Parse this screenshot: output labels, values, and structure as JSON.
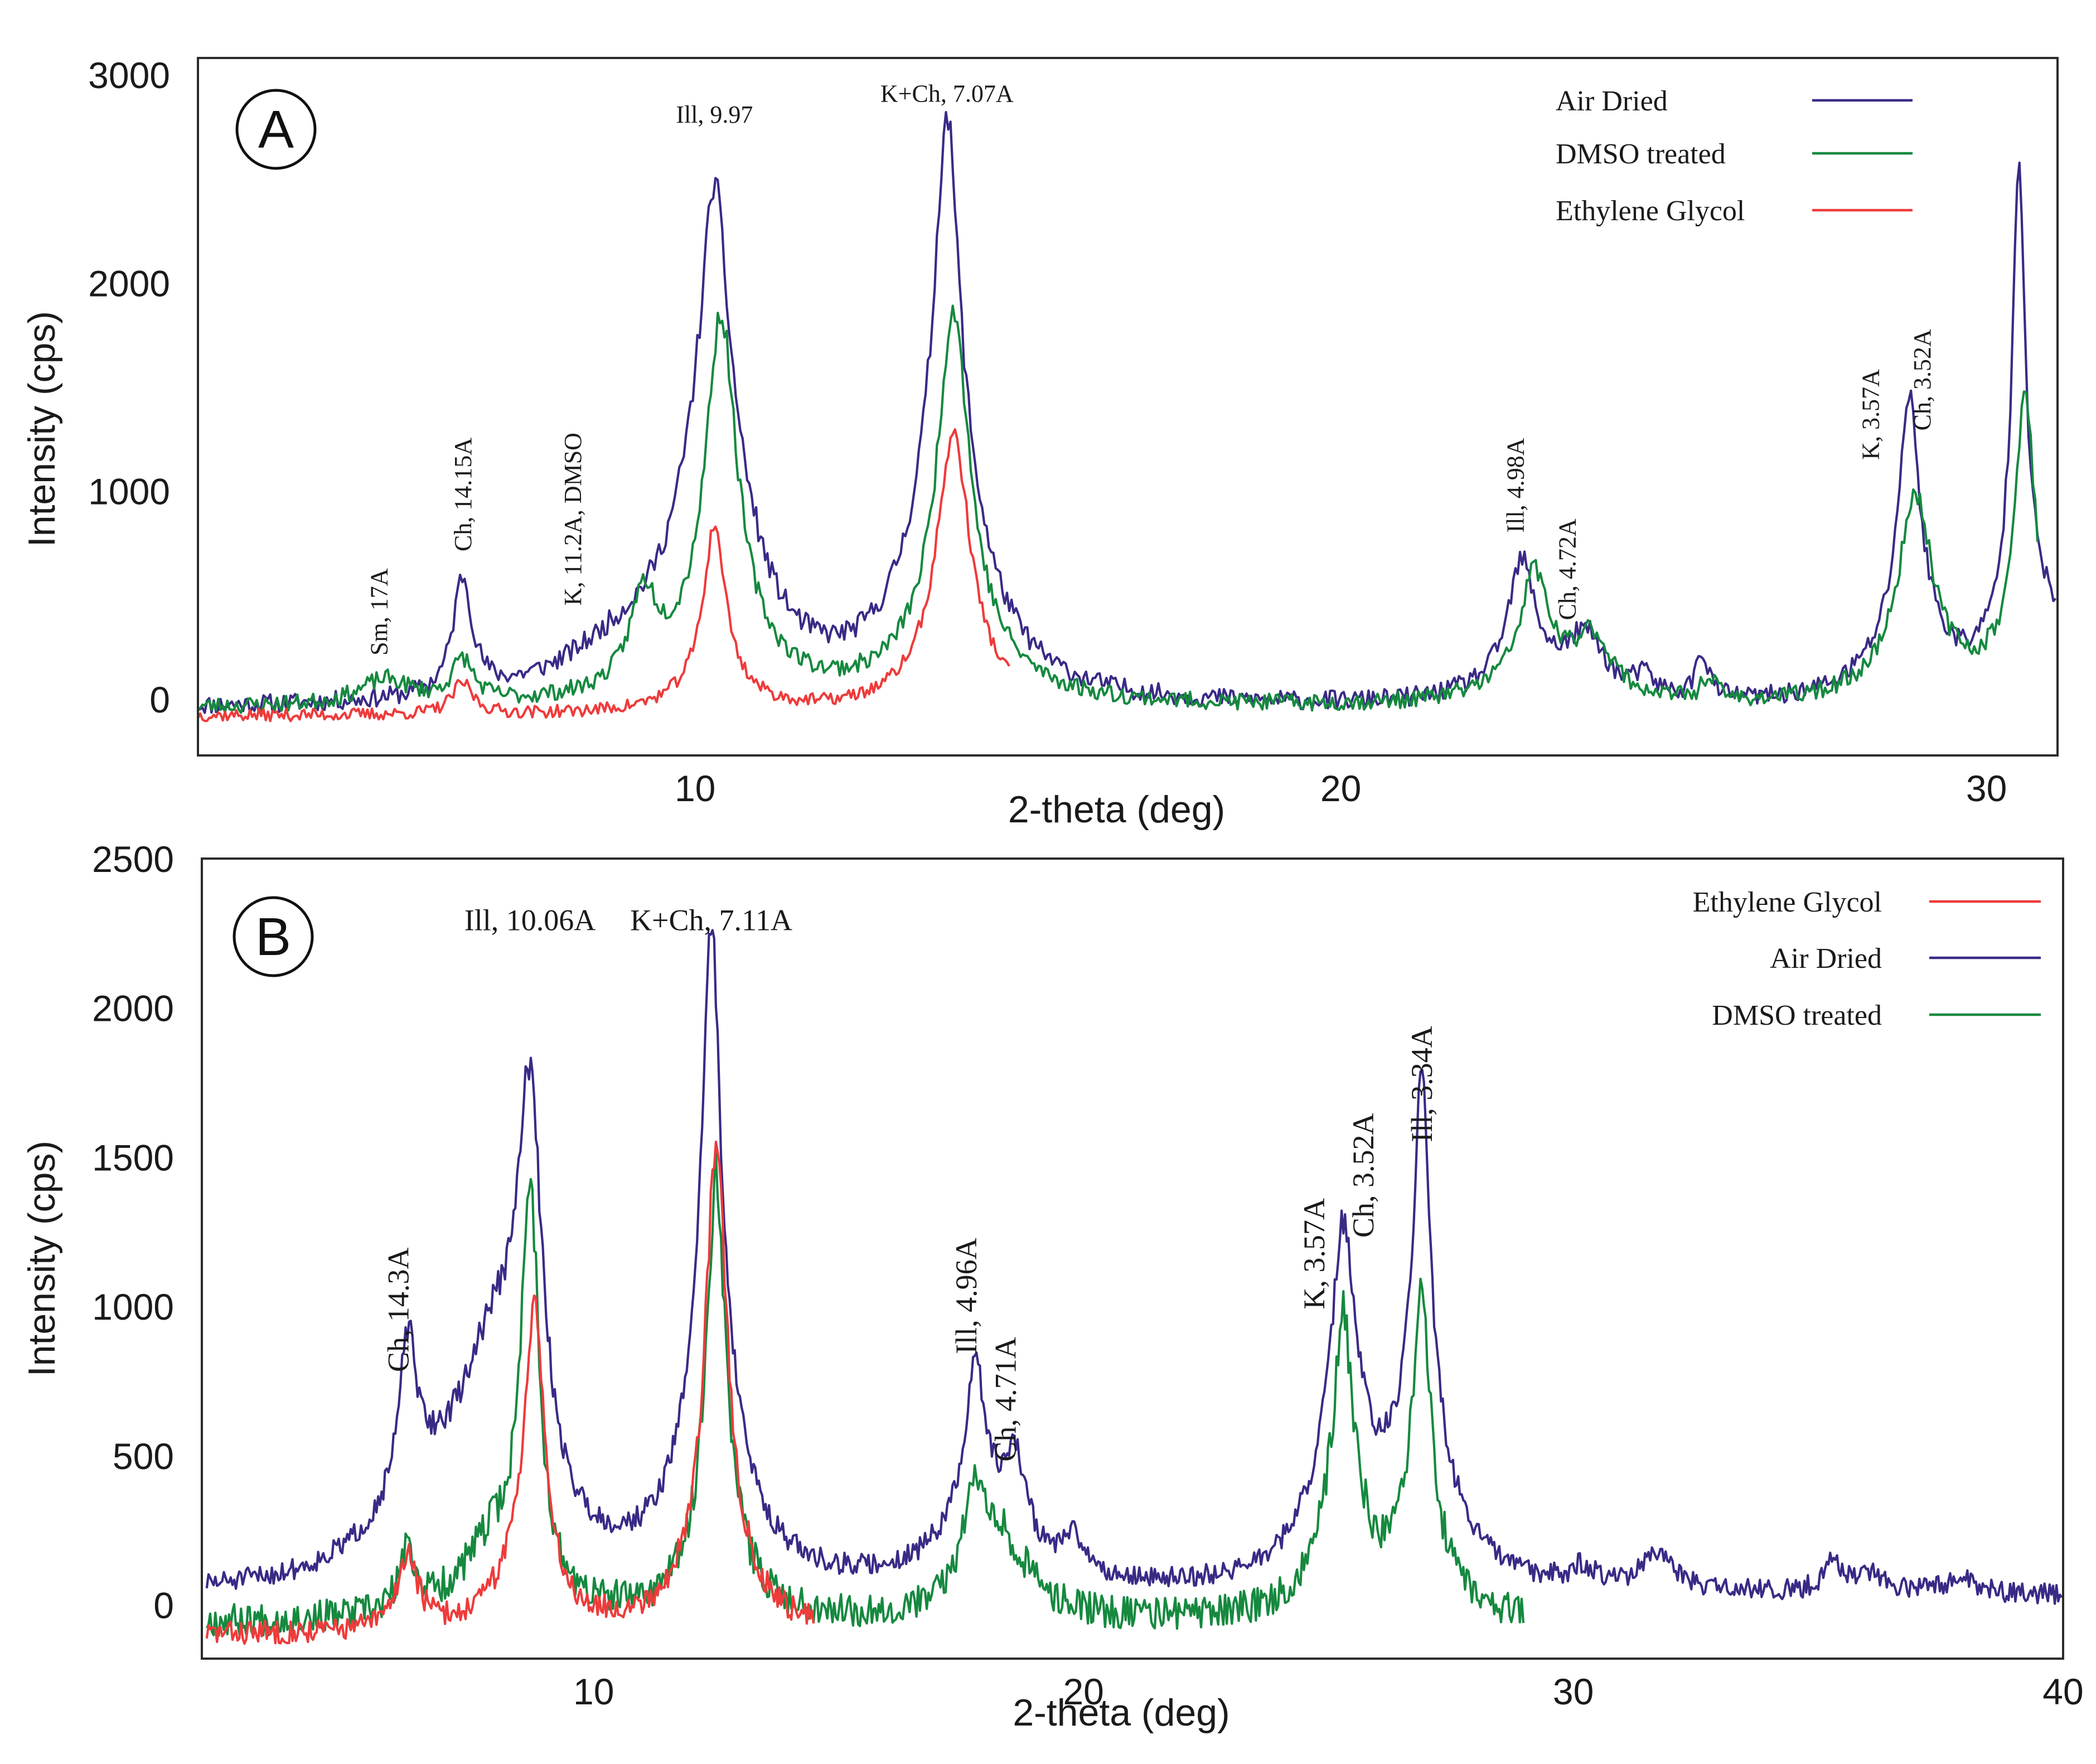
{
  "figure": {
    "colors": {
      "air_dried": "#3a2a86",
      "dmso": "#16893f",
      "ethylene_glycol": "#ee3b3b",
      "frame": "#2b2b2b",
      "text": "#1a1a1a"
    }
  },
  "chart_data": [
    {
      "type": "line",
      "panel_letter": "A",
      "xlabel": "2-theta (deg)",
      "ylabel": "Intensity (cps)",
      "xlim": [
        2.3,
        31.1
      ],
      "ylim": [
        -270,
        3080
      ],
      "x_ticks": [
        10,
        20,
        30
      ],
      "y_ticks": [
        0,
        1000,
        2000,
        3000
      ],
      "legend_position": "top-right",
      "series": [
        {
          "name": "Air Dried",
          "color_key": "air_dried",
          "x_range": [
            2.3,
            31.1
          ],
          "baseline": -50,
          "noise": 45,
          "seed": 11,
          "peaks": [
            [
              6.4,
              560,
              0.18
            ],
            [
              8.9,
              200,
              1.2
            ],
            [
              10.3,
              1050,
              0.22
            ],
            [
              10.3,
              1350,
              0.65
            ],
            [
              13.9,
              1700,
              0.22
            ],
            [
              13.9,
              1100,
              0.7
            ],
            [
              22.8,
              550,
              0.25
            ],
            [
              22.9,
              120,
              0.9
            ],
            [
              23.8,
              270,
              0.35
            ],
            [
              24.7,
              90,
              0.2
            ],
            [
              25.6,
              220,
              0.12
            ],
            [
              28.8,
              1150,
              0.2
            ],
            [
              28.8,
              300,
              0.7
            ],
            [
              30.5,
              2100,
              0.12
            ],
            [
              30.5,
              450,
              0.45
            ],
            [
              31.1,
              250,
              0.35
            ]
          ]
        },
        {
          "name": "DMSO treated",
          "color_key": "dmso",
          "x_range": [
            2.3,
            30.8
          ],
          "baseline": -45,
          "noise": 40,
          "seed": 23,
          "peaks": [
            [
              5.2,
              120,
              0.5
            ],
            [
              6.4,
              200,
              0.2
            ],
            [
              9.2,
              420,
              0.25
            ],
            [
              10.4,
              1500,
              0.28
            ],
            [
              10.4,
              350,
              0.8
            ],
            [
              14.0,
              1500,
              0.28
            ],
            [
              14.0,
              400,
              0.8
            ],
            [
              23.0,
              500,
              0.25
            ],
            [
              23.0,
              130,
              0.8
            ],
            [
              23.9,
              280,
              0.35
            ],
            [
              25.7,
              120,
              0.12
            ],
            [
              28.9,
              850,
              0.3
            ],
            [
              28.9,
              150,
              0.8
            ],
            [
              30.6,
              1250,
              0.17
            ],
            [
              30.6,
              250,
              0.6
            ]
          ]
        },
        {
          "name": "Ethylene Glycol",
          "color_key": "ethylene_glycol",
          "x_range": [
            2.3,
            14.9
          ],
          "baseline": -80,
          "noise": 30,
          "seed": 37,
          "peaks": [
            [
              6.4,
              150,
              0.2
            ],
            [
              10.3,
              750,
              0.2
            ],
            [
              10.3,
              150,
              0.6
            ],
            [
              14.0,
              1150,
              0.3
            ],
            [
              14.0,
              200,
              0.8
            ]
          ]
        }
      ],
      "legend": [
        {
          "label": "Air Dried",
          "color_key": "air_dried"
        },
        {
          "label": "DMSO treated",
          "color_key": "dmso"
        },
        {
          "label": "Ethylene Glycol",
          "color_key": "ethylene_glycol"
        }
      ],
      "annotations": [
        {
          "text": "Sm, 17A",
          "x": 5.1,
          "y": 210,
          "rotate": true
        },
        {
          "text": "Ch, 14.15A",
          "x": 6.4,
          "y": 710,
          "rotate": true
        },
        {
          "text": "K, 11.2A, DMSO",
          "x": 8.1,
          "y": 450,
          "rotate": true
        },
        {
          "text": "Ill, 9.97",
          "x": 10.3,
          "y": 2770,
          "rotate": false
        },
        {
          "text": "K+Ch, 7.07A",
          "x": 13.9,
          "y": 2870,
          "rotate": false
        },
        {
          "text": "Ill, 4.98A",
          "x": 22.7,
          "y": 800,
          "rotate": true
        },
        {
          "text": "Ch, 4.72A",
          "x": 23.5,
          "y": 380,
          "rotate": true
        },
        {
          "text": "K, 3.57A",
          "x": 28.2,
          "y": 1150,
          "rotate": true
        },
        {
          "text": "Ch, 3.52A",
          "x": 29.0,
          "y": 1290,
          "rotate": true
        }
      ]
    },
    {
      "type": "line",
      "panel_letter": "B",
      "xlabel": "2-theta (deg)",
      "ylabel": "Intensity (cps)",
      "xlim": [
        2.0,
        40.0
      ],
      "ylim": [
        -180,
        2500
      ],
      "x_ticks": [
        10,
        20,
        30,
        40
      ],
      "y_ticks": [
        0,
        500,
        1000,
        1500,
        2000,
        2500
      ],
      "legend_position": "top-right",
      "series": [
        {
          "name": "Air Dried",
          "color_key": "air_dried",
          "x_range": [
            2.1,
            40.0
          ],
          "baseline": 30,
          "noise": 35,
          "seed": 51,
          "peaks": [
            [
              6.2,
              500,
              0.2
            ],
            [
              6.5,
              250,
              1.2
            ],
            [
              8.7,
              1250,
              0.3
            ],
            [
              8.0,
              700,
              0.9
            ],
            [
              12.4,
              1500,
              0.22
            ],
            [
              12.4,
              700,
              0.7
            ],
            [
              17.8,
              480,
              0.22
            ],
            [
              17.8,
              250,
              0.9
            ],
            [
              18.6,
              300,
              0.3
            ],
            [
              19.8,
              120,
              0.3
            ],
            [
              25.3,
              650,
              0.25
            ],
            [
              25.3,
              500,
              0.7
            ],
            [
              26.9,
              1200,
              0.2
            ],
            [
              26.9,
              450,
              0.75
            ],
            [
              30.2,
              60,
              0.3
            ],
            [
              31.7,
              110,
              0.4
            ],
            [
              35.3,
              120,
              0.2
            ],
            [
              36.1,
              60,
              0.4
            ],
            [
              37.9,
              60,
              0.3
            ]
          ]
        },
        {
          "name": "DMSO treated",
          "color_key": "dmso",
          "x_range": [
            2.1,
            29.0
          ],
          "baseline": -60,
          "noise": 55,
          "seed": 67,
          "peaks": [
            [
              6.2,
              200,
              0.2
            ],
            [
              8.0,
              250,
              0.8
            ],
            [
              8.7,
              1350,
              0.22
            ],
            [
              12.5,
              1200,
              0.22
            ],
            [
              12.5,
              300,
              0.6
            ],
            [
              17.8,
              320,
              0.3
            ],
            [
              18.3,
              250,
              0.7
            ],
            [
              25.3,
              650,
              0.22
            ],
            [
              25.3,
              350,
              0.6
            ],
            [
              26.9,
              750,
              0.2
            ],
            [
              26.9,
              300,
              0.5
            ]
          ]
        },
        {
          "name": "Ethylene Glycol",
          "color_key": "ethylene_glycol",
          "x_range": [
            2.1,
            14.5
          ],
          "baseline": -100,
          "noise": 40,
          "seed": 83,
          "peaks": [
            [
              6.2,
              250,
              0.25
            ],
            [
              8.8,
              900,
              0.22
            ],
            [
              8.6,
              250,
              0.6
            ],
            [
              12.5,
              1350,
              0.25
            ],
            [
              12.5,
              300,
              0.7
            ]
          ]
        }
      ],
      "legend": [
        {
          "label": "Ethylene Glycol",
          "color_key": "ethylene_glycol"
        },
        {
          "label": "Air Dried",
          "color_key": "air_dried"
        },
        {
          "label": "DMSO treated",
          "color_key": "dmso"
        }
      ],
      "annotations": [
        {
          "text": "Ch, 14.3A",
          "x": 6.0,
          "y": 780,
          "rotate": true
        },
        {
          "text": "Ill, 10.06A",
          "x": 8.7,
          "y": 2260,
          "rotate": false
        },
        {
          "text": "K+Ch, 7.11A",
          "x": 12.4,
          "y": 2260,
          "rotate": false
        },
        {
          "text": "Ill, 4.96A",
          "x": 17.6,
          "y": 840,
          "rotate": true
        },
        {
          "text": "Ch, 4.71A",
          "x": 18.4,
          "y": 480,
          "rotate": true
        },
        {
          "text": "K, 3.57A",
          "x": 24.7,
          "y": 990,
          "rotate": true
        },
        {
          "text": "Ch, 3.52A",
          "x": 25.7,
          "y": 1230,
          "rotate": true
        },
        {
          "text": "Ill, 3.34A",
          "x": 26.9,
          "y": 1550,
          "rotate": true
        }
      ]
    }
  ]
}
